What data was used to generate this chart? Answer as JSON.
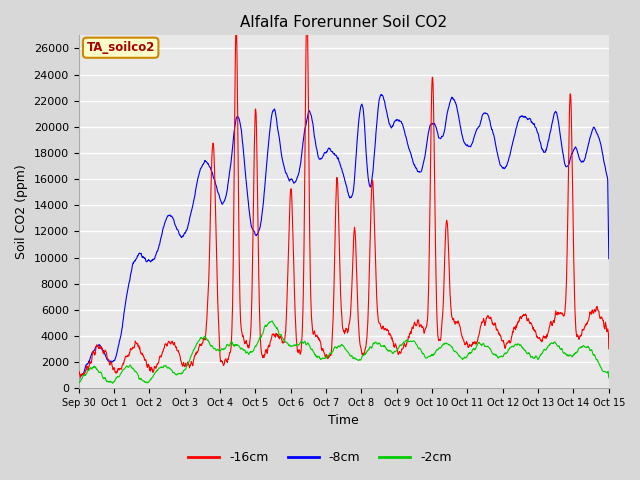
{
  "title": "Alfalfa Forerunner Soil CO2",
  "xlabel": "Time",
  "ylabel": "Soil CO2 (ppm)",
  "ylim": [
    0,
    27000
  ],
  "yticks": [
    0,
    2000,
    4000,
    6000,
    8000,
    10000,
    12000,
    14000,
    16000,
    18000,
    20000,
    22000,
    24000,
    26000
  ],
  "line_colors": {
    "neg16cm": "#ff0000",
    "neg8cm": "#0000ff",
    "neg2cm": "#00cc00"
  },
  "legend_labels": [
    "-16cm",
    "-8cm",
    "-2cm"
  ],
  "legend_label": "TA_soilco2",
  "fig_bg_color": "#d8d8d8",
  "plot_bg_color": "#e8e8e8",
  "grid_color": "#ffffff",
  "title_fontsize": 11,
  "axis_fontsize": 9,
  "tick_fontsize": 8
}
